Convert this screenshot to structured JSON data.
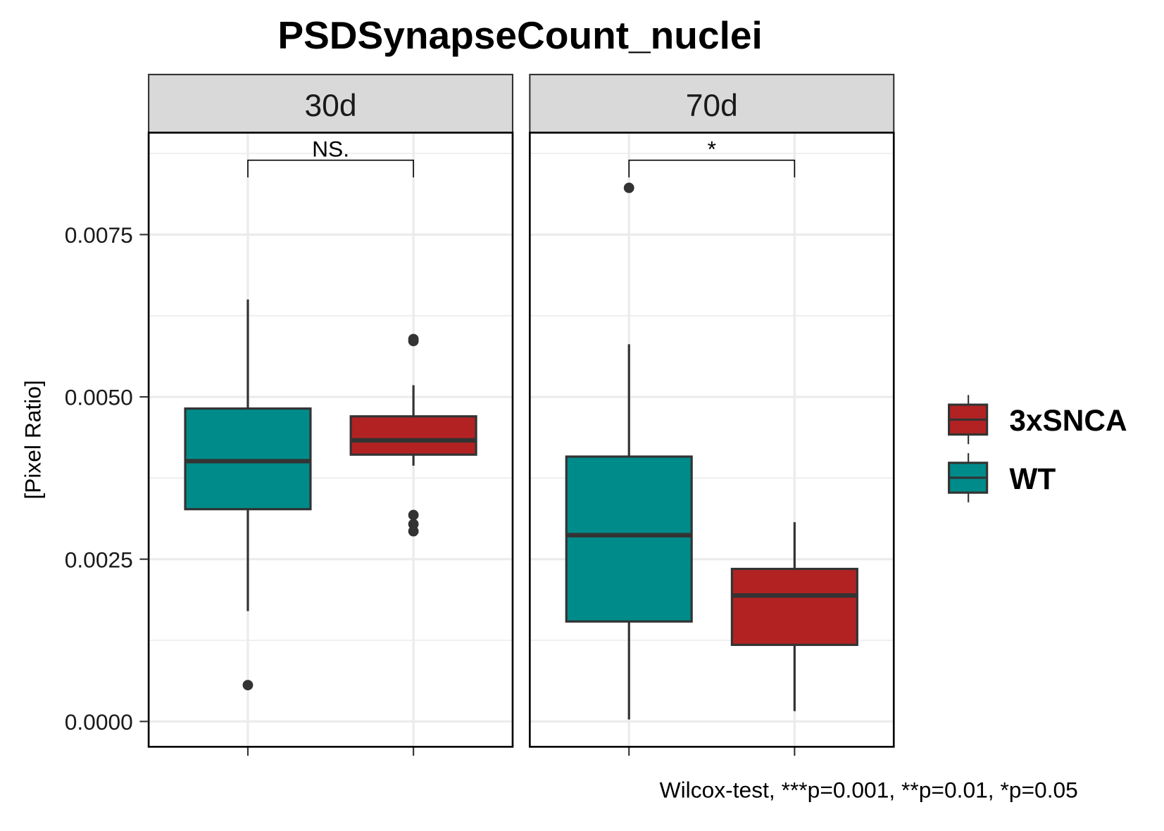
{
  "chart_data": {
    "type": "boxplot",
    "title": "PSDSynapseCount_nuclei",
    "ylabel": "[Pixel Ratio]",
    "xlabel": "",
    "ylim": [
      -0.00039,
      0.00907
    ],
    "yticks": [
      0,
      0.0025,
      0.005,
      0.0075
    ],
    "ytick_labels": [
      "0.0000",
      "0.0025",
      "0.0050",
      "0.0075"
    ],
    "grid": true,
    "legend": {
      "placement": "right",
      "entries": [
        {
          "label": "3xSNCA",
          "color": "#B22222"
        },
        {
          "label": "WT",
          "color": "#008B8B"
        }
      ]
    },
    "footnote": "Wilcox-test, ***p=0.001, **p=0.01, *p=0.05",
    "panels": [
      {
        "label": "30d",
        "significance": "NS.",
        "groups": [
          {
            "name": "WT",
            "color": "#008B8B",
            "whisker_low": 0.0017,
            "q1": 0.00327,
            "median": 0.00401,
            "q3": 0.00482,
            "whisker_high": 0.0065,
            "outliers": [
              0.00056
            ]
          },
          {
            "name": "3xSNCA",
            "color": "#B22222",
            "whisker_low": 0.00394,
            "q1": 0.00411,
            "median": 0.00433,
            "q3": 0.0047,
            "whisker_high": 0.00518,
            "outliers": [
              0.00589,
              0.00586,
              0.00318,
              0.00304,
              0.00293
            ]
          }
        ]
      },
      {
        "label": "70d",
        "significance": "*",
        "groups": [
          {
            "name": "WT",
            "color": "#008B8B",
            "whisker_low": 3e-05,
            "q1": 0.00154,
            "median": 0.00287,
            "q3": 0.00408,
            "whisker_high": 0.00581,
            "outliers": [
              0.00822
            ]
          },
          {
            "name": "3xSNCA",
            "color": "#B22222",
            "whisker_low": 0.00016,
            "q1": 0.00118,
            "median": 0.00194,
            "q3": 0.00235,
            "whisker_high": 0.00307,
            "outliers": []
          }
        ]
      }
    ]
  }
}
